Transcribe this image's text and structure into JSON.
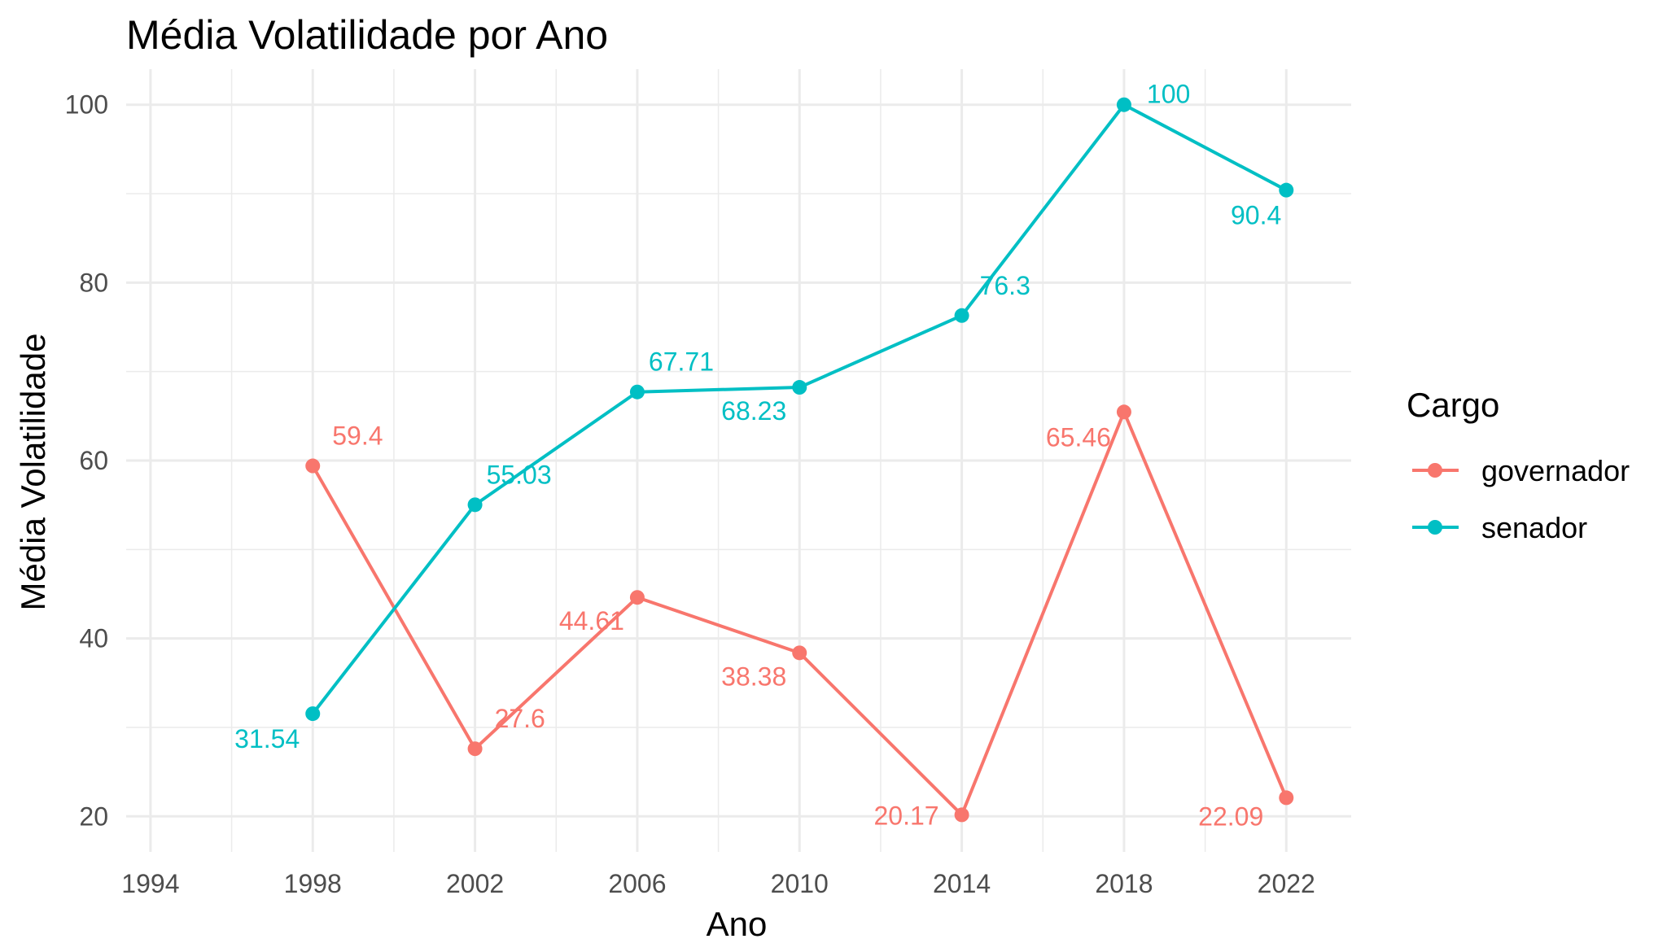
{
  "chart_data": {
    "type": "line",
    "title": "Média Volatilidade por Ano",
    "xlabel": "Ano",
    "ylabel": "Média Volatilidade",
    "x_ticks": [
      1994,
      1998,
      2002,
      2006,
      2010,
      2014,
      2018,
      2022
    ],
    "y_ticks": [
      20,
      40,
      60,
      80,
      100
    ],
    "xlim": [
      1993.4,
      2023.6
    ],
    "ylim": [
      16,
      104
    ],
    "grid": true,
    "legend": {
      "title": "Cargo",
      "position": "right"
    },
    "x": [
      1998,
      2002,
      2006,
      2010,
      2014,
      2018,
      2022
    ],
    "series": [
      {
        "name": "governador",
        "color": "#F8766D",
        "values": [
          59.4,
          27.6,
          44.61,
          38.38,
          20.17,
          65.46,
          22.09
        ],
        "labels": [
          "59.4",
          "27.6",
          "44.61",
          "38.38",
          "20.17",
          "65.46",
          "22.09"
        ]
      },
      {
        "name": "senador",
        "color": "#00BFC4",
        "values": [
          31.54,
          55.03,
          67.71,
          68.23,
          76.3,
          100,
          90.4
        ],
        "labels": [
          "31.54",
          "55.03",
          "67.71",
          "68.23",
          "76.3",
          "100",
          "90.4"
        ]
      }
    ]
  }
}
